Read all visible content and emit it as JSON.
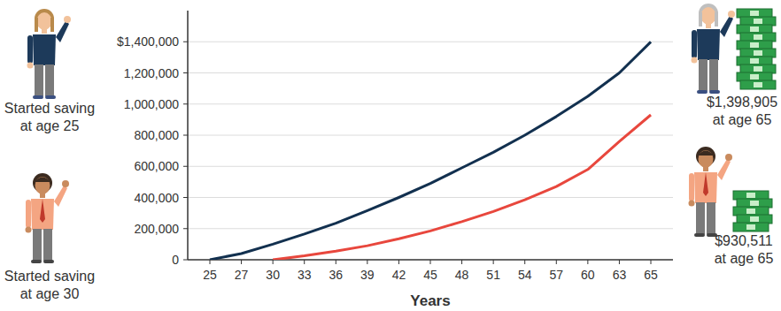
{
  "chart_data": {
    "type": "line",
    "xlabel": "Years",
    "categories": [
      "25",
      "27",
      "30",
      "33",
      "36",
      "39",
      "42",
      "45",
      "48",
      "51",
      "54",
      "57",
      "60",
      "63",
      "65"
    ],
    "series": [
      {
        "color": "#12304f",
        "values": [
          0,
          40000,
          100000,
          165000,
          235000,
          315000,
          400000,
          490000,
          590000,
          690000,
          800000,
          920000,
          1050000,
          1200000,
          1398905
        ]
      },
      {
        "color": "#e8473d",
        "values": [
          null,
          null,
          0,
          25000,
          55000,
          90000,
          135000,
          185000,
          245000,
          310000,
          385000,
          470000,
          580000,
          760000,
          930511
        ]
      }
    ],
    "ylim": [
      0,
      1600000
    ],
    "yticks": [
      0,
      {
        "value": 200000,
        "label": "200,000"
      },
      {
        "value": 400000,
        "label": "400,000"
      },
      {
        "value": 600000,
        "label": "600,000"
      },
      {
        "value": 800000,
        "label": "800,000"
      },
      {
        "value": 1000000,
        "label": "1,000,000"
      },
      {
        "value": 1200000,
        "label": "1,200,000"
      },
      {
        "value": 1400000,
        "label": "$1,400,000"
      }
    ],
    "grid": true,
    "annotations": [
      {
        "lines": [
          "Started saving",
          "at age 25"
        ]
      },
      {
        "lines": [
          "Started saving",
          "at age 30"
        ]
      },
      {
        "lines": [
          "$1,398,905",
          "at age 65"
        ]
      },
      {
        "lines": [
          "$930,511",
          "at age 65"
        ]
      }
    ]
  }
}
